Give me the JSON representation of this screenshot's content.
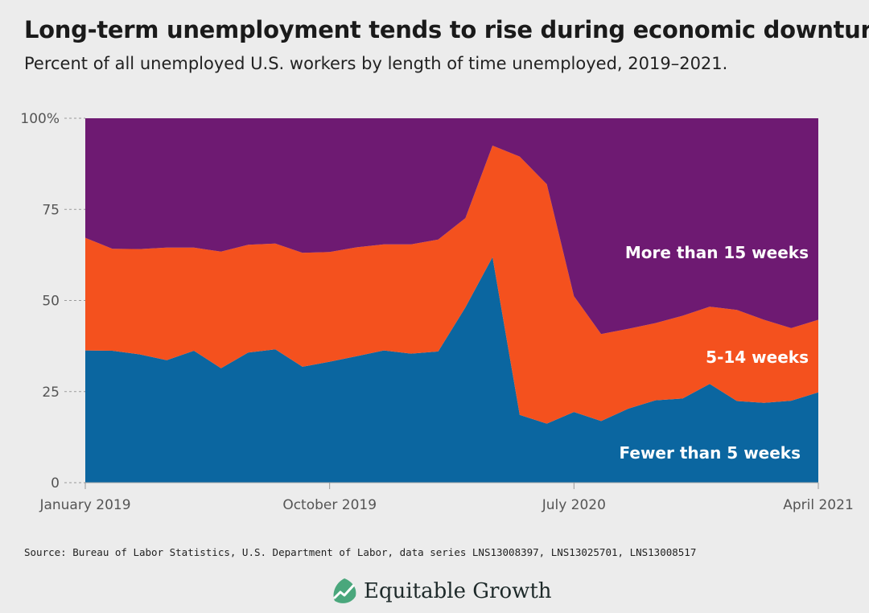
{
  "header": {
    "title": "Long-term unemployment tends to rise during economic downturns",
    "subtitle": "Percent of all unemployed U.S. workers by length of time unemployed, 2019–2021."
  },
  "chart_data": {
    "type": "area",
    "stacked": true,
    "x": [
      "Jan 2019",
      "Feb 2019",
      "Mar 2019",
      "Apr 2019",
      "May 2019",
      "Jun 2019",
      "Jul 2019",
      "Aug 2019",
      "Sep 2019",
      "Oct 2019",
      "Nov 2019",
      "Dec 2019",
      "Jan 2020",
      "Feb 2020",
      "Mar 2020",
      "Apr 2020",
      "May 2020",
      "Jun 2020",
      "Jul 2020",
      "Aug 2020",
      "Sep 2020",
      "Oct 2020",
      "Nov 2020",
      "Dec 2020",
      "Jan 2021",
      "Feb 2021",
      "Mar 2021",
      "Apr 2021"
    ],
    "series": [
      {
        "name": "Fewer than 5 weeks",
        "color": "#0b66a0",
        "values": [
          36.3,
          36.2,
          35.2,
          33.6,
          36.2,
          31.4,
          35.7,
          36.6,
          31.8,
          33.2,
          34.7,
          36.3,
          35.4,
          36.0,
          48.1,
          61.9,
          18.6,
          16.2,
          19.4,
          16.9,
          20.3,
          22.6,
          23.1,
          27.1,
          22.4,
          21.9,
          22.5,
          24.8
        ]
      },
      {
        "name": "5-14 weeks",
        "color": "#f4511e",
        "values": [
          30.9,
          28.0,
          28.9,
          30.9,
          28.3,
          32.0,
          29.6,
          29.0,
          31.3,
          30.1,
          29.9,
          29.1,
          30.0,
          30.7,
          24.5,
          30.6,
          70.9,
          65.7,
          31.8,
          23.9,
          21.9,
          21.2,
          22.7,
          21.2,
          25.0,
          22.8,
          19.9,
          19.9
        ]
      },
      {
        "name": "More than 15 weeks",
        "color": "#6e1a72",
        "values": [
          32.8,
          35.8,
          35.9,
          35.5,
          35.5,
          36.6,
          34.7,
          34.4,
          36.9,
          36.7,
          35.4,
          34.6,
          34.6,
          33.3,
          27.4,
          7.5,
          10.5,
          18.1,
          48.8,
          59.2,
          57.8,
          56.2,
          54.2,
          51.7,
          52.6,
          55.3,
          57.6,
          55.3
        ]
      }
    ],
    "x_tick_labels": [
      {
        "index": 0,
        "label": "January 2019"
      },
      {
        "index": 9,
        "label": "October 2019"
      },
      {
        "index": 18,
        "label": "July 2020"
      },
      {
        "index": 27,
        "label": "April 2021"
      }
    ],
    "y_ticks": [
      0,
      25,
      50,
      75,
      100
    ],
    "y_tick_labels": [
      "0",
      "25",
      "50",
      "75",
      "100%"
    ],
    "ylim": [
      0,
      100
    ],
    "xlabel": "",
    "ylabel": "",
    "legend": "inline labels on areas",
    "grid": false
  },
  "footer": {
    "source": "Source: Bureau of Labor Statistics, U.S. Department of Labor, data series LNS13008397, LNS13025701, LNS13008517",
    "brand": "Equitable Growth",
    "brand_icon": "growth-leaf-icon"
  }
}
